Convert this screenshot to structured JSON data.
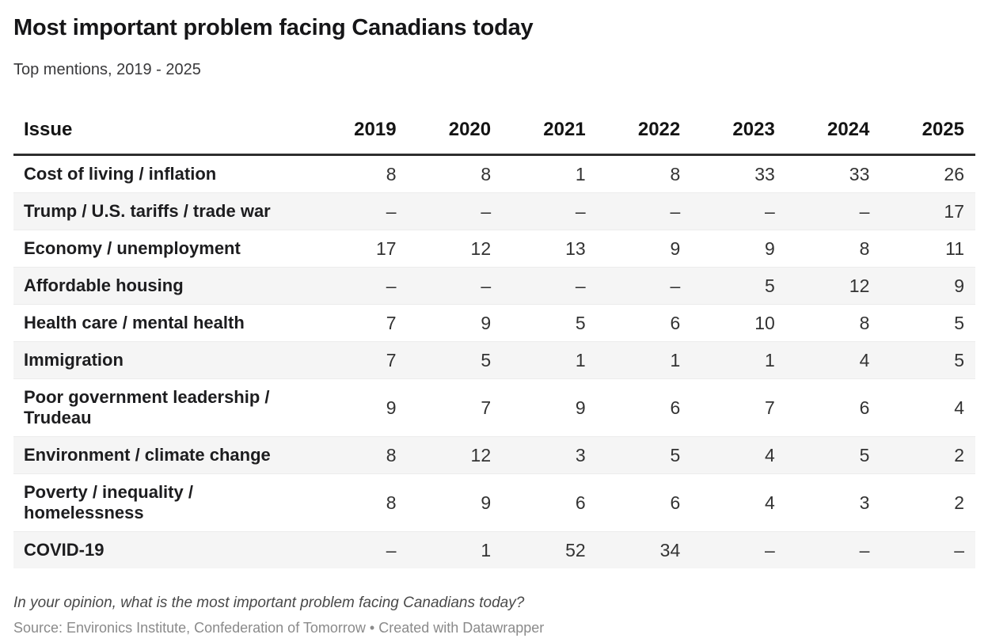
{
  "header": {
    "title": "Most important problem facing Canadians today",
    "subtitle": "Top mentions, 2019 - 2025"
  },
  "table": {
    "issue_header": "Issue",
    "year_headers": [
      "2019",
      "2020",
      "2021",
      "2022",
      "2023",
      "2024",
      "2025"
    ],
    "rows": [
      {
        "issue": "Cost of living / inflation",
        "values": [
          "8",
          "8",
          "1",
          "8",
          "33",
          "33",
          "26"
        ]
      },
      {
        "issue": "Trump / U.S. tariffs / trade war",
        "values": [
          "–",
          "–",
          "–",
          "–",
          "–",
          "–",
          "17"
        ]
      },
      {
        "issue": "Economy / unemployment",
        "values": [
          "17",
          "12",
          "13",
          "9",
          "9",
          "8",
          "11"
        ]
      },
      {
        "issue": "Affordable housing",
        "values": [
          "–",
          "–",
          "–",
          "–",
          "5",
          "12",
          "9"
        ]
      },
      {
        "issue": "Health care / mental health",
        "values": [
          "7",
          "9",
          "5",
          "6",
          "10",
          "8",
          "5"
        ]
      },
      {
        "issue": "Immigration",
        "values": [
          "7",
          "5",
          "1",
          "1",
          "1",
          "4",
          "5"
        ]
      },
      {
        "issue": "Poor government leadership / Trudeau",
        "values": [
          "9",
          "7",
          "9",
          "6",
          "7",
          "6",
          "4"
        ]
      },
      {
        "issue": "Environment / climate change",
        "values": [
          "8",
          "12",
          "3",
          "5",
          "4",
          "5",
          "2"
        ]
      },
      {
        "issue": "Poverty / inequality / homelessness",
        "values": [
          "8",
          "9",
          "6",
          "6",
          "4",
          "3",
          "2"
        ]
      },
      {
        "issue": "COVID-19",
        "values": [
          "–",
          "1",
          "52",
          "34",
          "–",
          "–",
          "–"
        ]
      }
    ]
  },
  "footer": {
    "note": "In your opinion, what is the most important problem facing Canadians today?",
    "source": "Source: Environics Institute, Confederation of Tomorrow",
    "separator": "•",
    "created_with": "Created with Datawrapper"
  },
  "colors": {
    "title_text": "#161618",
    "body_text": "#333333",
    "stripe_background": "#f5f5f5",
    "header_rule": "#2e2e2e",
    "muted_text": "#8a8a8a"
  },
  "chart_data": {
    "type": "table",
    "title": "Most important problem facing Canadians today",
    "subtitle": "Top mentions, 2019 - 2025",
    "columns": [
      "Issue",
      "2019",
      "2020",
      "2021",
      "2022",
      "2023",
      "2024",
      "2025"
    ],
    "rows": [
      [
        "Cost of living / inflation",
        8,
        8,
        1,
        8,
        33,
        33,
        26
      ],
      [
        "Trump / U.S. tariffs / trade war",
        null,
        null,
        null,
        null,
        null,
        null,
        17
      ],
      [
        "Economy / unemployment",
        17,
        12,
        13,
        9,
        9,
        8,
        11
      ],
      [
        "Affordable housing",
        null,
        null,
        null,
        null,
        5,
        12,
        9
      ],
      [
        "Health care / mental health",
        7,
        9,
        5,
        6,
        10,
        8,
        5
      ],
      [
        "Immigration",
        7,
        5,
        1,
        1,
        1,
        4,
        5
      ],
      [
        "Poor government leadership / Trudeau",
        9,
        7,
        9,
        6,
        7,
        6,
        4
      ],
      [
        "Environment / climate change",
        8,
        12,
        3,
        5,
        4,
        5,
        2
      ],
      [
        "Poverty / inequality / homelessness",
        8,
        9,
        6,
        6,
        4,
        3,
        2
      ],
      [
        "COVID-19",
        null,
        1,
        52,
        34,
        null,
        null,
        null
      ]
    ],
    "missing_value_marker": "–",
    "layout": {
      "striped_rows": true,
      "header_rule": true,
      "values_are_percent_mentions": true
    }
  }
}
